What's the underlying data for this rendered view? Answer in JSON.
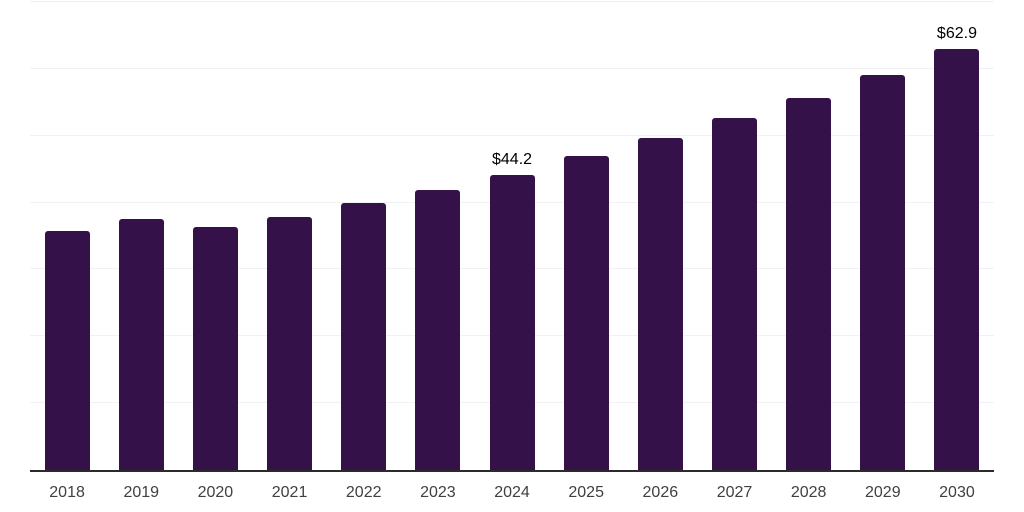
{
  "chart_data": {
    "type": "bar",
    "title": "",
    "xlabel": "",
    "ylabel": "",
    "categories": [
      "2018",
      "2019",
      "2020",
      "2021",
      "2022",
      "2023",
      "2024",
      "2025",
      "2026",
      "2027",
      "2028",
      "2029",
      "2030"
    ],
    "values": [
      35.7,
      37.6,
      36.3,
      37.9,
      39.9,
      41.9,
      44.2,
      46.9,
      49.7,
      52.7,
      55.7,
      59.1,
      62.9
    ],
    "data_labels": {
      "2024": "$44.2",
      "2030": "$62.9"
    },
    "ylim": [
      0,
      70
    ],
    "gridline_step": 10,
    "grid": true,
    "legend": "none",
    "y_axis_labels_visible": false,
    "colors": {
      "bar": "#35114A",
      "gridline": "#f1f1f1",
      "axis_line": "#2b2b2b",
      "tick_label": "#404040",
      "data_label": "#000000",
      "background": "#ffffff"
    }
  }
}
